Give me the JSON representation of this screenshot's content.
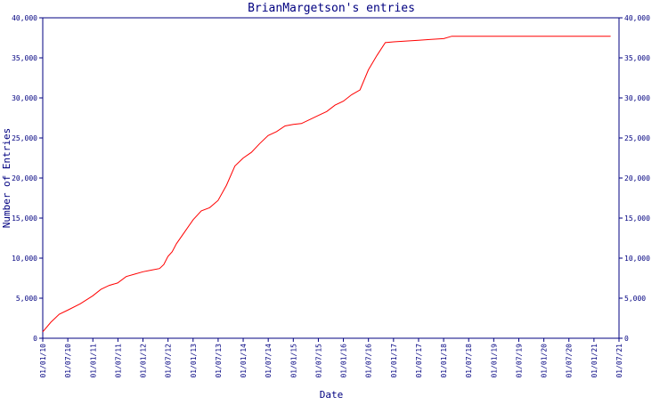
{
  "chart_data": {
    "type": "line",
    "title": "BrianMargetson's entries",
    "xlabel": "Date",
    "ylabel": "Number of Entries",
    "x_tick_labels": [
      "01/01/10",
      "01/07/10",
      "01/01/11",
      "01/07/11",
      "01/01/12",
      "01/07/12",
      "01/01/13",
      "01/07/13",
      "01/01/14",
      "01/07/14",
      "01/01/15",
      "01/07/15",
      "01/01/16",
      "01/07/16",
      "01/01/17",
      "01/07/17",
      "01/01/18",
      "01/07/18",
      "01/01/19",
      "01/07/19",
      "01/01/20",
      "01/07/20",
      "01/01/21",
      "01/07/21"
    ],
    "y_tick_labels": [
      "0",
      "5,000",
      "10,000",
      "15,000",
      "20,000",
      "25,000",
      "30,000",
      "35,000",
      "40,000"
    ],
    "ylim": [
      0,
      40000
    ],
    "xlim": [
      "2010-01-01",
      "2021-07-01"
    ],
    "grid": false,
    "line_color": "#ff0000",
    "axis_color": "#000080",
    "series": [
      {
        "x": [
          "2010-01-01",
          "2010-03-01",
          "2010-05-01",
          "2010-07-01",
          "2010-10-01",
          "2011-01-01",
          "2011-03-01",
          "2011-05-01",
          "2011-07-01",
          "2011-09-01",
          "2011-11-01",
          "2012-01-01",
          "2012-03-01",
          "2012-05-01",
          "2012-06-01",
          "2012-07-01",
          "2012-08-01",
          "2012-09-01",
          "2012-11-01",
          "2013-01-01",
          "2013-03-01",
          "2013-05-01",
          "2013-07-01",
          "2013-09-01",
          "2013-11-01",
          "2014-01-01",
          "2014-03-01",
          "2014-05-01",
          "2014-07-01",
          "2014-09-01",
          "2014-11-01",
          "2015-01-01",
          "2015-03-01",
          "2015-05-01",
          "2015-07-01",
          "2015-09-01",
          "2015-11-01",
          "2016-01-01",
          "2016-03-01",
          "2016-05-01",
          "2016-07-01",
          "2016-09-01",
          "2016-11-01",
          "2017-01-01",
          "2017-04-01",
          "2017-07-01",
          "2017-10-01",
          "2018-01-01",
          "2018-03-01",
          "2018-05-01",
          "2018-08-01",
          "2019-01-01",
          "2019-07-01",
          "2020-01-01",
          "2020-07-01",
          "2021-01-01",
          "2021-05-01"
        ],
        "y": [
          800,
          2000,
          3000,
          3500,
          4300,
          5300,
          6100,
          6600,
          6900,
          7700,
          8000,
          8300,
          8500,
          8700,
          9200,
          10200,
          10800,
          11800,
          13300,
          14800,
          15900,
          16300,
          17200,
          19100,
          21500,
          22500,
          23200,
          24300,
          25300,
          25800,
          26500,
          26700,
          26800,
          27300,
          27800,
          28300,
          29100,
          29600,
          30400,
          31000,
          33500,
          35300,
          36900,
          37000,
          37100,
          37200,
          37300,
          37400,
          37700,
          37700,
          37700,
          37700,
          37700,
          37700,
          37700,
          37700,
          37700
        ]
      }
    ]
  }
}
